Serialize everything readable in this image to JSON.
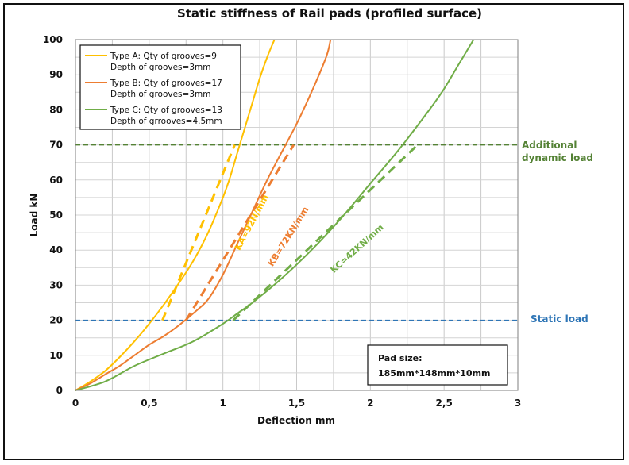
{
  "chart_data": {
    "type": "line",
    "title": "Static stiffness of Rail pads (profiled surface)",
    "xlabel": "Deflection mm",
    "ylabel": "Load kN",
    "xlim": [
      0,
      3
    ],
    "ylim": [
      0,
      100
    ],
    "x_ticks": [
      0,
      0.5,
      1,
      1.5,
      2,
      2.5,
      3
    ],
    "x_tick_labels": [
      "0",
      "0,5",
      "1",
      "1,5",
      "2",
      "2,5",
      "3"
    ],
    "y_ticks": [
      0,
      10,
      20,
      30,
      40,
      50,
      60,
      70,
      80,
      90,
      100
    ],
    "y_tick_labels": [
      "0",
      "10",
      "20",
      "30",
      "40",
      "50",
      "60",
      "70",
      "80",
      "90",
      "100"
    ],
    "grid": true,
    "legend_position": "top-left",
    "series": [
      {
        "name": "Type A: Qty of grooves=9",
        "name_line2": "Depth of grooves=3mm",
        "color": "#FFC000",
        "x": [
          0,
          0.1,
          0.2,
          0.3,
          0.4,
          0.5,
          0.6,
          0.7,
          0.8,
          0.9,
          1.0,
          1.05,
          1.1,
          1.15,
          1.2,
          1.25,
          1.3,
          1.35
        ],
        "y": [
          0,
          2.5,
          5.5,
          9.5,
          14,
          19,
          24.5,
          30.5,
          37,
          45,
          55,
          61,
          68,
          75,
          82,
          89,
          95,
          100
        ]
      },
      {
        "name": "Type B: Qty of grooves=17",
        "name_line2": "Depth of grooves=3mm",
        "color": "#ED7D31",
        "x": [
          0,
          0.1,
          0.2,
          0.3,
          0.4,
          0.5,
          0.6,
          0.7,
          0.8,
          0.9,
          1.0,
          1.1,
          1.2,
          1.3,
          1.4,
          1.5,
          1.6,
          1.7,
          1.73
        ],
        "y": [
          0,
          2,
          4.5,
          7,
          10,
          13,
          15.5,
          18.5,
          22,
          26,
          33,
          42,
          51,
          60,
          68,
          76,
          85,
          95,
          100
        ]
      },
      {
        "name": "Type C: Qty of grooves=13",
        "name_line2": "Depth of grrooves=4.5mm",
        "color": "#70AD47",
        "x": [
          0,
          0.2,
          0.4,
          0.6,
          0.8,
          1.0,
          1.1,
          1.2,
          1.4,
          1.6,
          1.8,
          2.0,
          2.2,
          2.4,
          2.5,
          2.6,
          2.7
        ],
        "y": [
          0,
          2.5,
          7,
          10.5,
          14,
          19,
          22,
          25,
          32,
          40,
          49,
          59,
          69,
          80,
          86,
          93,
          100
        ]
      }
    ],
    "stiffness_lines": [
      {
        "label": "KA=92N/mm",
        "color": "#FFC000",
        "x": [
          0.59,
          1.08
        ],
        "y": [
          20,
          70
        ]
      },
      {
        "label": "KB=72KN/mm",
        "color": "#ED7D31",
        "x": [
          0.75,
          1.48
        ],
        "y": [
          20,
          70
        ]
      },
      {
        "label": "KC=42KN/mm",
        "color": "#70AD47",
        "x": [
          1.07,
          2.32
        ],
        "y": [
          20,
          70
        ]
      }
    ],
    "reference_lines": [
      {
        "label": "Static load",
        "y": 20,
        "color": "#2E75B6"
      },
      {
        "label_line1": "Additional",
        "label_line2": "dynamic load",
        "y": 70,
        "color": "#548235"
      }
    ],
    "annotation": {
      "line1": "Pad size:",
      "line2": "185mm*148mm*10mm"
    }
  }
}
